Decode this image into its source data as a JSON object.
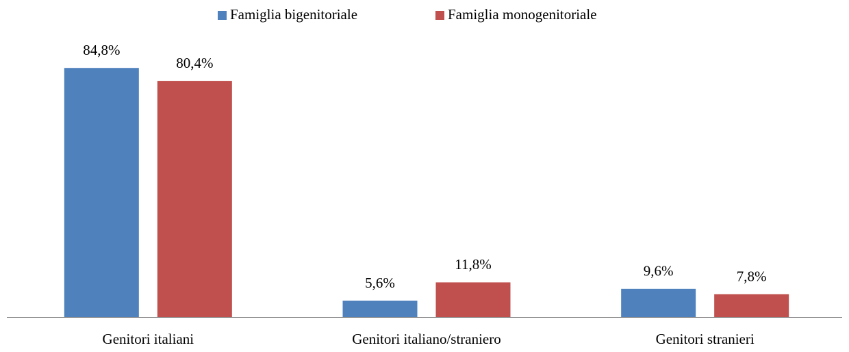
{
  "chart_data": {
    "type": "bar",
    "categories": [
      "Genitori italiani",
      "Genitori italiano/straniero",
      "Genitori stranieri"
    ],
    "series": [
      {
        "name": "Famiglia bigenitoriale",
        "color": "#4f81bd",
        "values": [
          84.8,
          5.6,
          9.6
        ],
        "value_labels": [
          "84,8%",
          "5,6%",
          "9,6%"
        ]
      },
      {
        "name": "Famiglia monogenitoriale",
        "color": "#c0504d",
        "values": [
          80.4,
          11.8,
          7.8
        ],
        "value_labels": [
          "80,4%",
          "11,8%",
          "7,8%"
        ]
      }
    ],
    "legend": "top"
  }
}
